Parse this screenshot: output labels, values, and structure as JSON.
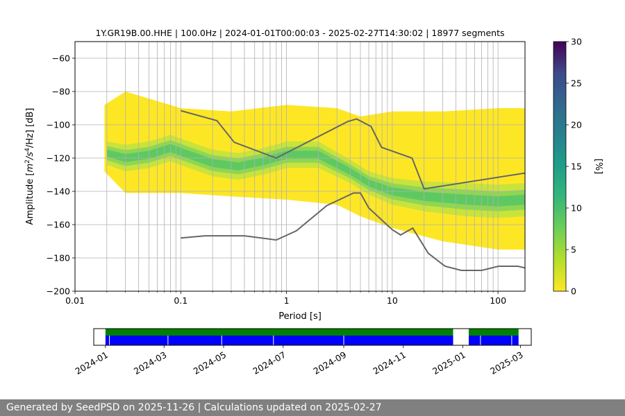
{
  "title": "1Y.GR19B.00.HHE | 100.0Hz | 2024-01-01T00:00:03 - 2025-02-27T14:30:02 | 18977 segments",
  "footer": "Generated by SeedPSD on 2025-11-26 | Calculations updated on 2025-02-27",
  "colors": {
    "yellow": "#fde725",
    "green": "#5ec962",
    "teal": "#21918c",
    "noise_model": "#666666",
    "grid": "#b0b0b0",
    "gap_green": "#008000",
    "gap_blue": "#0000ff"
  },
  "chart_data": [
    {
      "type": "heatmap",
      "xlabel": "Period [s]",
      "ylabel_parts": {
        "base": "Amplitude [",
        "m": "m",
        "exp2": "2",
        "s": "/s",
        "exp4": "4",
        "hz": "/Hz] [dB]"
      },
      "x_scale": "log",
      "xlim": [
        0.01,
        180
      ],
      "ylim": [
        -200,
        -50
      ],
      "x_tick_labels": [
        "0.01",
        "0.1",
        "1",
        "10",
        "100"
      ],
      "x_ticks": [
        0.01,
        0.1,
        1,
        10,
        100
      ],
      "y_ticks": [
        -60,
        -80,
        -100,
        -120,
        -140,
        -160,
        -180,
        -200
      ],
      "y_tick_labels": [
        "−60",
        "−80",
        "−100",
        "−120",
        "−140",
        "−160",
        "−180",
        "−200"
      ],
      "grid": true,
      "colorbar": {
        "label": "[%]",
        "range": [
          0,
          30
        ],
        "ticks": [
          0,
          5,
          10,
          15,
          20,
          25,
          30
        ],
        "tick_labels": [
          "0",
          "5",
          "10",
          "15",
          "20",
          "25",
          "30"
        ],
        "colormap": "viridis"
      },
      "psd_band": [
        {
          "x": 0.02,
          "mode": -117,
          "width": 7
        },
        {
          "x": 0.03,
          "mode": -120,
          "width": 8
        },
        {
          "x": 0.05,
          "mode": -118,
          "width": 8
        },
        {
          "x": 0.08,
          "mode": -114,
          "width": 8
        },
        {
          "x": 0.12,
          "mode": -118,
          "width": 8
        },
        {
          "x": 0.2,
          "mode": -123,
          "width": 8
        },
        {
          "x": 0.35,
          "mode": -125,
          "width": 8
        },
        {
          "x": 0.6,
          "mode": -122,
          "width": 8
        },
        {
          "x": 1,
          "mode": -118,
          "width": 8
        },
        {
          "x": 2,
          "mode": -118,
          "width": 8
        },
        {
          "x": 4,
          "mode": -128,
          "width": 7
        },
        {
          "x": 6,
          "mode": -135,
          "width": 7
        },
        {
          "x": 10,
          "mode": -140,
          "width": 8
        },
        {
          "x": 20,
          "mode": -143,
          "width": 9
        },
        {
          "x": 50,
          "mode": -145,
          "width": 10
        },
        {
          "x": 100,
          "mode": -146,
          "width": 10
        },
        {
          "x": 180,
          "mode": -145,
          "width": 10
        }
      ],
      "psd_envelope": [
        {
          "x": 0.019,
          "low": -128,
          "high": -88
        },
        {
          "x": 0.03,
          "low": -141,
          "high": -80
        },
        {
          "x": 0.1,
          "low": -141,
          "high": -90
        },
        {
          "x": 0.3,
          "low": -143,
          "high": -92
        },
        {
          "x": 1,
          "low": -145,
          "high": -88
        },
        {
          "x": 3,
          "low": -148,
          "high": -90
        },
        {
          "x": 5,
          "low": -155,
          "high": -95
        },
        {
          "x": 10,
          "low": -162,
          "high": -92
        },
        {
          "x": 30,
          "low": -170,
          "high": -92
        },
        {
          "x": 100,
          "low": -175,
          "high": -90
        },
        {
          "x": 180,
          "low": -175,
          "high": -90
        }
      ],
      "series": [
        {
          "points": [
            [
              0.1,
              -91.5
            ],
            [
              0.22,
              -97.5
            ],
            [
              0.32,
              -110.5
            ],
            [
              0.8,
              -120
            ],
            [
              3.8,
              -98
            ],
            [
              4.6,
              -96.5
            ],
            [
              6.3,
              -101
            ],
            [
              7.9,
              -113.5
            ],
            [
              15.4,
              -120
            ],
            [
              20,
              -138.5
            ],
            [
              180,
              -129
            ]
          ]
        },
        {
          "points": [
            [
              0.1,
              -168
            ],
            [
              0.17,
              -166.7
            ],
            [
              0.4,
              -166.7
            ],
            [
              0.8,
              -169.2
            ],
            [
              1.24,
              -163.7
            ],
            [
              2.4,
              -148.6
            ],
            [
              4.3,
              -141
            ],
            [
              5,
              -141
            ],
            [
              6,
              -150
            ],
            [
              10,
              -163
            ],
            [
              12,
              -166.2
            ],
            [
              15.6,
              -162.1
            ],
            [
              21.9,
              -177.2
            ],
            [
              31.6,
              -185
            ],
            [
              45,
              -187.5
            ],
            [
              70,
              -187.5
            ],
            [
              101,
              -185
            ],
            [
              154,
              -185
            ],
            [
              180,
              -186
            ]
          ]
        }
      ]
    },
    {
      "type": "timeline",
      "x_tick_labels": [
        "2024-01",
        "2024-03",
        "2024-05",
        "2024-07",
        "2024-09",
        "2024-11",
        "2025-01",
        "2025-03"
      ],
      "x_tick_dates": [
        "2024-01-01",
        "2024-03-01",
        "2024-05-01",
        "2024-07-01",
        "2024-09-01",
        "2024-11-01",
        "2025-01-01",
        "2025-03-01"
      ],
      "xlim": [
        "2023-12-20",
        "2025-03-12"
      ],
      "coverage_segments": [
        {
          "start": "2024-01-01",
          "end": "2024-12-22"
        },
        {
          "start": "2025-01-07",
          "end": "2025-02-27"
        }
      ],
      "coverage_breaks": [
        "2024-01-05",
        "2024-03-05",
        "2024-04-29",
        "2024-06-21",
        "2024-09-01",
        "2025-01-19",
        "2025-02-20"
      ]
    }
  ]
}
